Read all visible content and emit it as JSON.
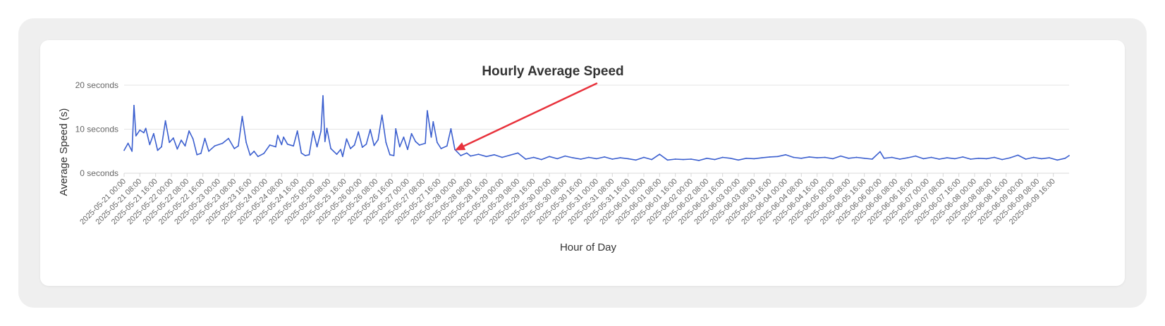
{
  "chart_data": {
    "type": "line",
    "title": "Hourly Average Speed",
    "xlabel": "Hour of Day",
    "ylabel": "Average Speed (s)",
    "ylim": [
      0,
      20
    ],
    "y_ticks": [
      "0 seconds",
      "10 seconds",
      "20 seconds"
    ],
    "y_tick_values": [
      0,
      10,
      20
    ],
    "x_tick_step_hours": 8,
    "x_ticks": [
      "2025-05-21 00:00",
      "2025-05-21 08:00",
      "2025-05-21 16:00",
      "2025-05-22 00:00",
      "2025-05-22 08:00",
      "2025-05-22 16:00",
      "2025-05-23 00:00",
      "2025-05-23 08:00",
      "2025-05-23 16:00",
      "2025-05-24 00:00",
      "2025-05-24 08:00",
      "2025-05-24 16:00",
      "2025-05-25 00:00",
      "2025-05-25 08:00",
      "2025-05-25 16:00",
      "2025-05-26 00:00",
      "2025-05-26 08:00",
      "2025-05-26 16:00",
      "2025-05-27 00:00",
      "2025-05-27 08:00",
      "2025-05-27 16:00",
      "2025-05-28 00:00",
      "2025-05-28 08:00",
      "2025-05-28 16:00",
      "2025-05-29 00:00",
      "2025-05-29 08:00",
      "2025-05-29 16:00",
      "2025-05-30 00:00",
      "2025-05-30 08:00",
      "2025-05-30 16:00",
      "2025-05-31 00:00",
      "2025-05-31 08:00",
      "2025-05-31 16:00",
      "2025-06-01 00:00",
      "2025-06-01 08:00",
      "2025-06-01 16:00",
      "2025-06-02 00:00",
      "2025-06-02 08:00",
      "2025-06-02 16:00",
      "2025-06-03 00:00",
      "2025-06-03 08:00",
      "2025-06-03 16:00",
      "2025-06-04 00:00",
      "2025-06-04 08:00",
      "2025-06-04 16:00",
      "2025-06-05 00:00",
      "2025-06-05 08:00",
      "2025-06-05 16:00",
      "2025-06-06 00:00",
      "2025-06-06 08:00",
      "2025-06-06 16:00",
      "2025-06-07 00:00",
      "2025-06-07 08:00",
      "2025-06-07 16:00",
      "2025-06-08 00:00",
      "2025-06-08 08:00",
      "2025-06-08 16:00",
      "2025-06-09 00:00",
      "2025-06-09 08:00",
      "2025-06-09 16:00"
    ],
    "series": [
      {
        "color": "#3b5fcf",
        "points": [
          [
            "2025-05-21 00:00",
            5.2
          ],
          [
            "2025-05-21 02:00",
            6.8
          ],
          [
            "2025-05-21 04:00",
            5.0
          ],
          [
            "2025-05-21 05:00",
            15.4
          ],
          [
            "2025-05-21 06:00",
            8.5
          ],
          [
            "2025-05-21 08:00",
            9.8
          ],
          [
            "2025-05-21 10:00",
            9.2
          ],
          [
            "2025-05-21 11:00",
            10.2
          ],
          [
            "2025-05-21 13:00",
            6.5
          ],
          [
            "2025-05-21 15:00",
            9.0
          ],
          [
            "2025-05-21 17:00",
            5.2
          ],
          [
            "2025-05-21 19:00",
            6.0
          ],
          [
            "2025-05-21 21:00",
            11.9
          ],
          [
            "2025-05-21 23:00",
            7.0
          ],
          [
            "2025-05-22 01:00",
            8.0
          ],
          [
            "2025-05-22 03:00",
            5.5
          ],
          [
            "2025-05-22 05:00",
            7.5
          ],
          [
            "2025-05-22 07:00",
            6.2
          ],
          [
            "2025-05-22 09:00",
            9.6
          ],
          [
            "2025-05-22 11:00",
            7.8
          ],
          [
            "2025-05-22 13:00",
            4.2
          ],
          [
            "2025-05-22 15:00",
            4.5
          ],
          [
            "2025-05-22 17:00",
            7.9
          ],
          [
            "2025-05-22 19:00",
            5.0
          ],
          [
            "2025-05-22 22:00",
            6.2
          ],
          [
            "2025-05-23 02:00",
            6.8
          ],
          [
            "2025-05-23 05:00",
            7.9
          ],
          [
            "2025-05-23 08:00",
            5.6
          ],
          [
            "2025-05-23 10:00",
            6.2
          ],
          [
            "2025-05-23 12:00",
            12.9
          ],
          [
            "2025-05-23 14:00",
            7.0
          ],
          [
            "2025-05-23 16:00",
            4.1
          ],
          [
            "2025-05-23 18:00",
            5.0
          ],
          [
            "2025-05-23 20:00",
            3.8
          ],
          [
            "2025-05-23 23:00",
            4.5
          ],
          [
            "2025-05-24 02:00",
            6.4
          ],
          [
            "2025-05-24 05:00",
            6.0
          ],
          [
            "2025-05-24 06:00",
            8.6
          ],
          [
            "2025-05-24 08:00",
            6.5
          ],
          [
            "2025-05-24 09:00",
            8.2
          ],
          [
            "2025-05-24 11:00",
            6.6
          ],
          [
            "2025-05-24 14:00",
            6.2
          ],
          [
            "2025-05-24 16:00",
            9.6
          ],
          [
            "2025-05-24 18:00",
            4.6
          ],
          [
            "2025-05-24 20:00",
            4.0
          ],
          [
            "2025-05-24 22:00",
            4.2
          ],
          [
            "2025-05-25 00:00",
            9.5
          ],
          [
            "2025-05-25 02:00",
            6.0
          ],
          [
            "2025-05-25 04:00",
            9.6
          ],
          [
            "2025-05-25 05:00",
            17.6
          ],
          [
            "2025-05-25 06:00",
            7.2
          ],
          [
            "2025-05-25 07:00",
            10.2
          ],
          [
            "2025-05-25 09:00",
            5.6
          ],
          [
            "2025-05-25 12:00",
            4.3
          ],
          [
            "2025-05-25 14:00",
            5.4
          ],
          [
            "2025-05-25 15:00",
            3.8
          ],
          [
            "2025-05-25 17:00",
            7.8
          ],
          [
            "2025-05-25 19:00",
            5.6
          ],
          [
            "2025-05-25 21:00",
            6.4
          ],
          [
            "2025-05-25 23:00",
            9.4
          ],
          [
            "2025-05-26 01:00",
            5.9
          ],
          [
            "2025-05-26 03:00",
            6.6
          ],
          [
            "2025-05-26 05:00",
            9.9
          ],
          [
            "2025-05-26 07:00",
            6.3
          ],
          [
            "2025-05-26 09:00",
            7.6
          ],
          [
            "2025-05-26 11:00",
            13.2
          ],
          [
            "2025-05-26 13:00",
            7.0
          ],
          [
            "2025-05-26 15:00",
            4.2
          ],
          [
            "2025-05-26 17:00",
            4.0
          ],
          [
            "2025-05-26 18:00",
            10.1
          ],
          [
            "2025-05-26 20:00",
            6.0
          ],
          [
            "2025-05-26 22:00",
            8.2
          ],
          [
            "2025-05-27 00:00",
            5.4
          ],
          [
            "2025-05-27 02:00",
            9.0
          ],
          [
            "2025-05-27 04:00",
            7.2
          ],
          [
            "2025-05-27 06:00",
            6.4
          ],
          [
            "2025-05-27 09:00",
            6.8
          ],
          [
            "2025-05-27 10:00",
            14.2
          ],
          [
            "2025-05-27 12:00",
            8.2
          ],
          [
            "2025-05-27 13:00",
            11.7
          ],
          [
            "2025-05-27 15:00",
            7.0
          ],
          [
            "2025-05-27 17:00",
            5.6
          ],
          [
            "2025-05-27 20:00",
            6.2
          ],
          [
            "2025-05-27 22:00",
            10.1
          ],
          [
            "2025-05-28 00:00",
            5.4
          ],
          [
            "2025-05-28 03:00",
            4.0
          ],
          [
            "2025-05-28 06:00",
            4.6
          ],
          [
            "2025-05-28 08:00",
            3.9
          ],
          [
            "2025-05-28 12:00",
            4.3
          ],
          [
            "2025-05-28 16:00",
            3.8
          ],
          [
            "2025-05-28 20:00",
            4.2
          ],
          [
            "2025-05-29 00:00",
            3.6
          ],
          [
            "2025-05-29 04:00",
            4.1
          ],
          [
            "2025-05-29 08:00",
            4.6
          ],
          [
            "2025-05-29 12:00",
            3.2
          ],
          [
            "2025-05-29 16:00",
            3.6
          ],
          [
            "2025-05-29 20:00",
            3.1
          ],
          [
            "2025-05-30 00:00",
            3.8
          ],
          [
            "2025-05-30 04:00",
            3.3
          ],
          [
            "2025-05-30 08:00",
            3.9
          ],
          [
            "2025-05-30 12:00",
            3.5
          ],
          [
            "2025-05-30 16:00",
            3.2
          ],
          [
            "2025-05-30 20:00",
            3.6
          ],
          [
            "2025-05-31 00:00",
            3.3
          ],
          [
            "2025-05-31 04:00",
            3.7
          ],
          [
            "2025-05-31 08:00",
            3.2
          ],
          [
            "2025-05-31 12:00",
            3.5
          ],
          [
            "2025-05-31 16:00",
            3.3
          ],
          [
            "2025-05-31 20:00",
            3.0
          ],
          [
            "2025-06-01 00:00",
            3.6
          ],
          [
            "2025-06-01 04:00",
            3.1
          ],
          [
            "2025-06-01 08:00",
            4.3
          ],
          [
            "2025-06-01 12:00",
            3.0
          ],
          [
            "2025-06-01 16:00",
            3.2
          ],
          [
            "2025-06-01 20:00",
            3.1
          ],
          [
            "2025-06-02 00:00",
            3.2
          ],
          [
            "2025-06-02 04:00",
            2.9
          ],
          [
            "2025-06-02 08:00",
            3.4
          ],
          [
            "2025-06-02 12:00",
            3.1
          ],
          [
            "2025-06-02 16:00",
            3.6
          ],
          [
            "2025-06-02 20:00",
            3.4
          ],
          [
            "2025-06-03 00:00",
            3.0
          ],
          [
            "2025-06-03 04:00",
            3.4
          ],
          [
            "2025-06-03 08:00",
            3.3
          ],
          [
            "2025-06-03 12:00",
            3.5
          ],
          [
            "2025-06-03 16:00",
            3.7
          ],
          [
            "2025-06-03 20:00",
            3.8
          ],
          [
            "2025-06-04 00:00",
            4.2
          ],
          [
            "2025-06-04 04:00",
            3.6
          ],
          [
            "2025-06-04 08:00",
            3.4
          ],
          [
            "2025-06-04 12:00",
            3.7
          ],
          [
            "2025-06-04 16:00",
            3.5
          ],
          [
            "2025-06-04 20:00",
            3.6
          ],
          [
            "2025-06-05 00:00",
            3.3
          ],
          [
            "2025-06-05 04:00",
            3.9
          ],
          [
            "2025-06-05 08:00",
            3.4
          ],
          [
            "2025-06-05 12:00",
            3.6
          ],
          [
            "2025-06-05 16:00",
            3.4
          ],
          [
            "2025-06-05 20:00",
            3.2
          ],
          [
            "2025-06-06 00:00",
            4.9
          ],
          [
            "2025-06-06 02:00",
            3.4
          ],
          [
            "2025-06-06 06:00",
            3.6
          ],
          [
            "2025-06-06 10:00",
            3.2
          ],
          [
            "2025-06-06 14:00",
            3.5
          ],
          [
            "2025-06-06 18:00",
            3.9
          ],
          [
            "2025-06-06 22:00",
            3.3
          ],
          [
            "2025-06-07 02:00",
            3.6
          ],
          [
            "2025-06-07 06:00",
            3.2
          ],
          [
            "2025-06-07 10:00",
            3.5
          ],
          [
            "2025-06-07 14:00",
            3.3
          ],
          [
            "2025-06-07 18:00",
            3.7
          ],
          [
            "2025-06-07 22:00",
            3.2
          ],
          [
            "2025-06-08 02:00",
            3.4
          ],
          [
            "2025-06-08 06:00",
            3.3
          ],
          [
            "2025-06-08 10:00",
            3.6
          ],
          [
            "2025-06-08 14:00",
            3.1
          ],
          [
            "2025-06-08 18:00",
            3.5
          ],
          [
            "2025-06-08 22:00",
            4.1
          ],
          [
            "2025-06-09 02:00",
            3.2
          ],
          [
            "2025-06-09 06:00",
            3.6
          ],
          [
            "2025-06-09 10:00",
            3.3
          ],
          [
            "2025-06-09 14:00",
            3.5
          ],
          [
            "2025-06-09 18:00",
            3.0
          ],
          [
            "2025-06-09 22:00",
            3.4
          ],
          [
            "2025-06-10 00:00",
            4.0
          ]
        ]
      }
    ],
    "x_range": [
      "2025-05-21 00:00",
      "2025-06-10 00:00"
    ],
    "grid": true,
    "legend": "none",
    "annotations": [
      {
        "type": "arrow",
        "color": "#e8323c",
        "from": [
          "2025-05-31 00:00",
          20.4
        ],
        "to": [
          "2025-05-28 00:00",
          5.2
        ]
      }
    ]
  },
  "colors": {
    "line": "#3b5fcf",
    "grid": "#e6e6e6",
    "arrow": "#e8323c",
    "page_bg": "#efefef",
    "card_bg": "#ffffff"
  }
}
